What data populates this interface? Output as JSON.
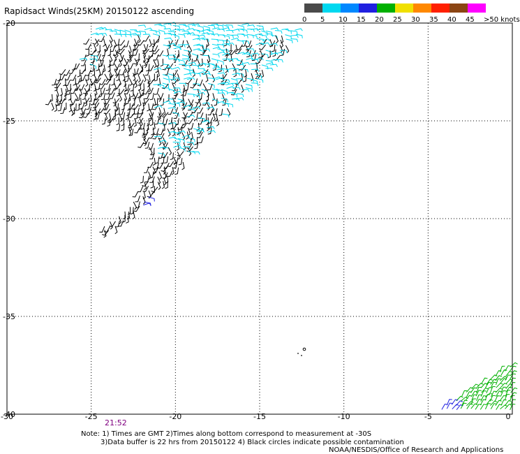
{
  "title": "Rapidsact Winds(25KM) 20150122 ascending",
  "legend": {
    "unit": "knots",
    "bins": [
      {
        "label": "0",
        "color": "#4a4a4a"
      },
      {
        "label": "5",
        "color": "#00d8f0"
      },
      {
        "label": "10",
        "color": "#0088ff"
      },
      {
        "label": "15",
        "color": "#2020e0"
      },
      {
        "label": "20",
        "color": "#00b000"
      },
      {
        "label": "25",
        "color": "#f0e000"
      },
      {
        "label": "30",
        "color": "#ff8800"
      },
      {
        "label": "35",
        "color": "#ff2000"
      },
      {
        "label": "40",
        "color": "#8b4513"
      },
      {
        "label": "45",
        "color": "#ff00ff"
      },
      {
        "label": ">50 knots",
        "color": "#600090"
      }
    ]
  },
  "map": {
    "lon_ticks": [
      "-30",
      "-25",
      "-20",
      "-15",
      "-10",
      "-5",
      "0"
    ],
    "lat_ticks": [
      "-20",
      "-25",
      "-30",
      "-35",
      "-40"
    ],
    "lon_range": [
      -30,
      0
    ],
    "lat_range": [
      -20,
      -40
    ],
    "grid": true,
    "wind_colors": {
      "calm": "#000000",
      "light": "#00d8f0",
      "moderate": "#00b000",
      "strong": "#2020e0"
    }
  },
  "time_label": "21:52",
  "notes": {
    "line1": "Note: 1) Times are GMT 2)Times along bottom correspond to measurement at -30S",
    "line2": "3)Data buffer is 22 hrs from 20150122 4) Black circles indicate possible contamination",
    "line3": "NOAA/NESDIS/Office of Research and Applications"
  }
}
